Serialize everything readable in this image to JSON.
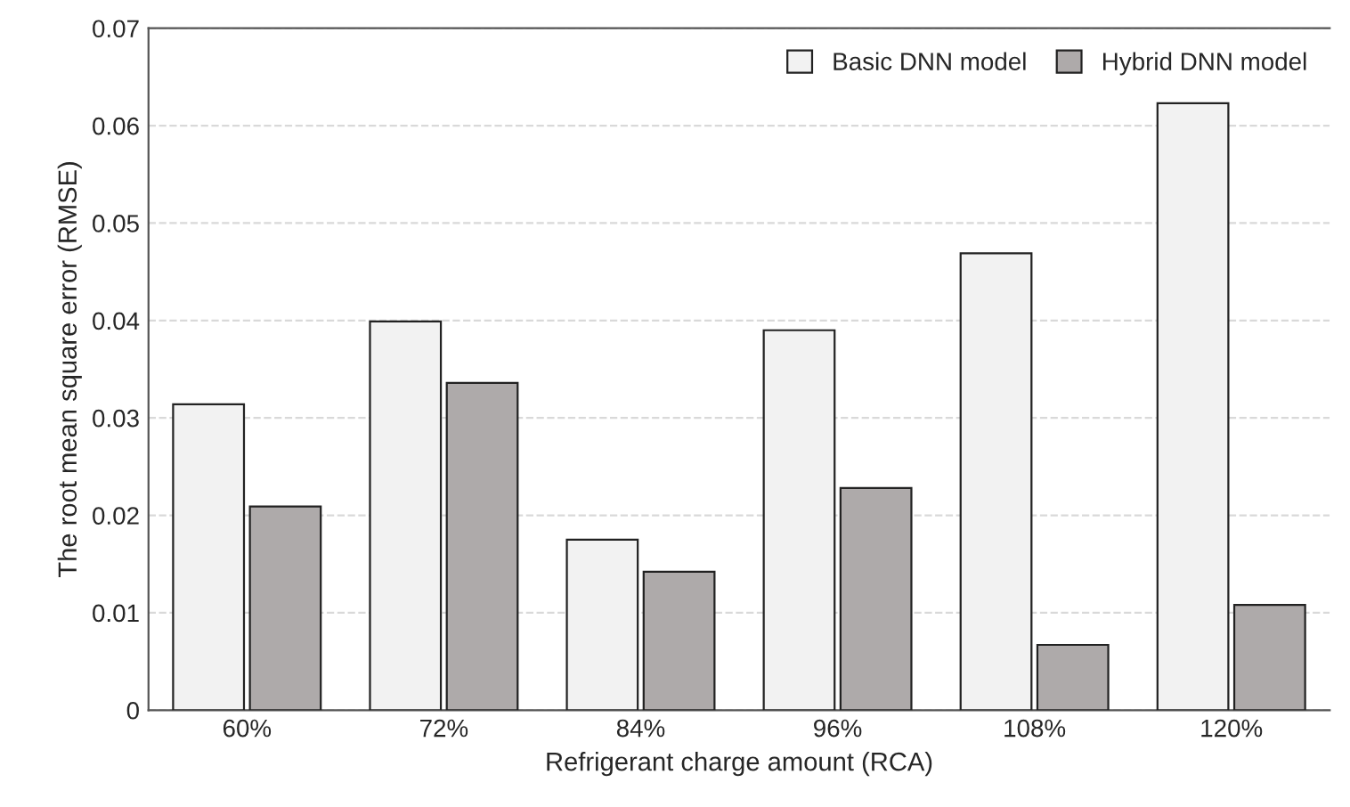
{
  "chart_data": {
    "type": "bar",
    "xlabel": "Refrigerant charge amount (RCA)",
    "ylabel": "The root mean square error (RMSE)",
    "categories": [
      "60%",
      "72%",
      "84%",
      "96%",
      "108%",
      "120%"
    ],
    "series": [
      {
        "name": "Basic DNN model",
        "color": "#f2f2f2",
        "values": [
          0.0314,
          0.0399,
          0.0175,
          0.039,
          0.0469,
          0.0623
        ]
      },
      {
        "name": "Hybrid DNN model",
        "color": "#aeaaaa",
        "values": [
          0.0209,
          0.0336,
          0.0142,
          0.0228,
          0.0067,
          0.0108
        ]
      }
    ],
    "ylim": [
      0,
      0.07
    ],
    "yticks": [
      0,
      0.01,
      0.02,
      0.03,
      0.04,
      0.05,
      0.06,
      0.07
    ],
    "grid": "y",
    "legend": "top right"
  }
}
